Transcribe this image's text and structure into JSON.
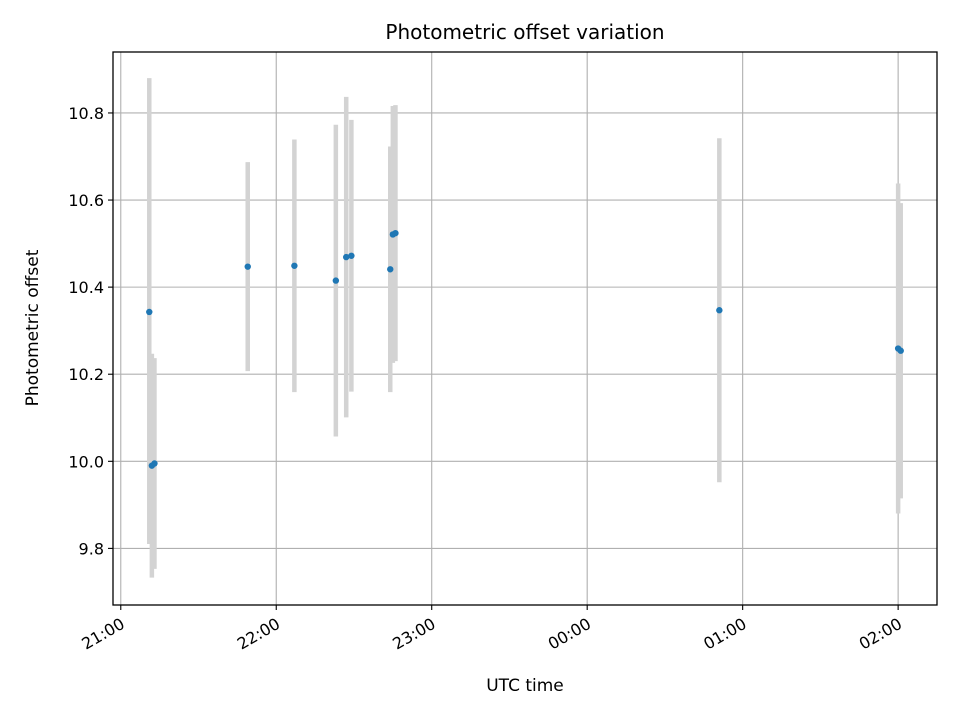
{
  "chart_data": {
    "type": "scatter",
    "title": "Photometric offset variation",
    "xlabel": "UTC time",
    "ylabel": "Photometric offset",
    "x_axis": {
      "type": "time",
      "min": "20:57",
      "max": "02:15",
      "ticks": [
        {
          "value": "21:00",
          "label": "21:00"
        },
        {
          "value": "22:00",
          "label": "22:00"
        },
        {
          "value": "23:00",
          "label": "23:00"
        },
        {
          "value": "00:00",
          "label": "00:00"
        },
        {
          "value": "01:00",
          "label": "01:00"
        },
        {
          "value": "02:00",
          "label": "02:00"
        }
      ]
    },
    "y_axis": {
      "min": 9.67,
      "max": 10.94,
      "ticks": [
        9.8,
        10.0,
        10.2,
        10.4,
        10.6,
        10.8
      ],
      "tick_labels": [
        "9.8",
        "10.0",
        "10.2",
        "10.4",
        "10.6",
        "10.8"
      ]
    },
    "grid": true,
    "legend": "none",
    "series": [
      {
        "marker_color": "#1f77b4",
        "errorbar_color": "#d3d3d3",
        "points": [
          {
            "x": "21:11",
            "y": 10.343,
            "y_low": 9.81,
            "y_high": 10.88
          },
          {
            "x": "21:12",
            "y": 9.99,
            "y_low": 9.733,
            "y_high": 10.247
          },
          {
            "x": "21:13",
            "y": 9.995,
            "y_low": 9.753,
            "y_high": 10.237
          },
          {
            "x": "21:49",
            "y": 10.447,
            "y_low": 10.207,
            "y_high": 10.687
          },
          {
            "x": "22:07",
            "y": 10.449,
            "y_low": 10.159,
            "y_high": 10.739
          },
          {
            "x": "22:23",
            "y": 10.415,
            "y_low": 10.057,
            "y_high": 10.773
          },
          {
            "x": "22:27",
            "y": 10.469,
            "y_low": 10.101,
            "y_high": 10.837
          },
          {
            "x": "22:29",
            "y": 10.472,
            "y_low": 10.16,
            "y_high": 10.784
          },
          {
            "x": "22:44",
            "y": 10.441,
            "y_low": 10.159,
            "y_high": 10.723
          },
          {
            "x": "22:45",
            "y": 10.521,
            "y_low": 10.226,
            "y_high": 10.816
          },
          {
            "x": "22:46",
            "y": 10.524,
            "y_low": 10.23,
            "y_high": 10.818
          },
          {
            "x": "00:51",
            "y": 10.347,
            "y_low": 9.952,
            "y_high": 10.742
          },
          {
            "x": "02:00",
            "y": 10.259,
            "y_low": 9.88,
            "y_high": 10.638
          },
          {
            "x": "02:01",
            "y": 10.254,
            "y_low": 9.915,
            "y_high": 10.593
          }
        ]
      }
    ]
  }
}
